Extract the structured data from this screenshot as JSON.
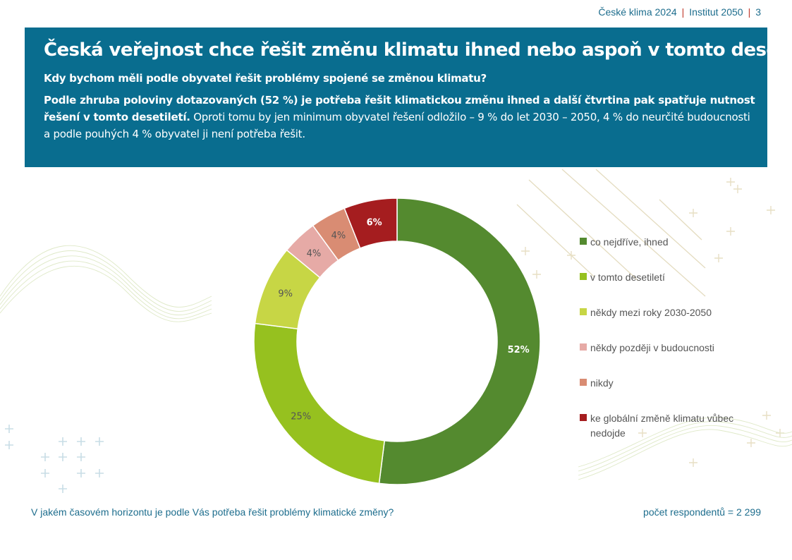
{
  "header": {
    "report": "České klima 2024",
    "institute": "Institut 2050",
    "page": "3"
  },
  "banner": {
    "title": "Česká veřejnost chce řešit změnu klimatu ihned nebo aspoň v tomto desetiletí",
    "subtitle": "Kdy bychom měli podle obyvatel řešit problémy spojené se změnou klimatu?",
    "body_bold": "Podle zhruba poloviny dotazovaných (52 %) je potřeba řešit klimatickou změnu ihned a další čtvrtina pak spatřuje nutnost řešení v tomto desetiletí.",
    "body_rest": " Oproti tomu by jen minimum obyvatel řešení odložilo – 9 % do let 2030 – 2050, 4 % do neurčité budoucnosti a podle pouhých 4 % obyvatel ji není potřeba řešit."
  },
  "chart_data": {
    "type": "pie",
    "variant": "donut",
    "categories": [
      "co nejdříve, ihned",
      "v tomto desetiletí",
      "někdy mezi roky 2030-2050",
      "někdy později v budoucnosti",
      "nikdy",
      "ke globální změně klimatu vůbec nedojde"
    ],
    "values": [
      52,
      25,
      9,
      4,
      4,
      6
    ],
    "value_labels": [
      "52%",
      "25%",
      "9%",
      "4%",
      "4%",
      "6%"
    ],
    "colors": [
      "#548a2f",
      "#96c11f",
      "#c7d645",
      "#e6aaa6",
      "#d98c73",
      "#a51d1f"
    ],
    "label_colors": [
      "#ffffff",
      "#555555",
      "#555555",
      "#555555",
      "#555555",
      "#ffffff"
    ],
    "legend_position": "right"
  },
  "footer": {
    "question": "V jakém časovém horizontu je podle Vás potřeba řešit problémy klimatické změny?",
    "respondents": "počet respondentů = 2 299"
  }
}
